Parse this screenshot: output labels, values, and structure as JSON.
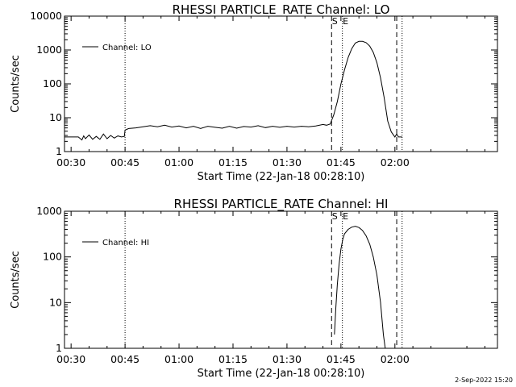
{
  "footer": {
    "timestamp": "2-Sep-2022 15:20"
  },
  "chart_data": [
    {
      "type": "line",
      "title": "RHESSI PARTICLE_RATE Channel: LO",
      "xlabel": "Start Time (22-Jan-18 00:28:10)",
      "ylabel": "Counts/sec",
      "y_scale": "log",
      "xlim_minutes": [
        28.17,
        148.5
      ],
      "ylim": [
        1,
        10000
      ],
      "x_tick_labels": [
        "00:30",
        "00:45",
        "01:00",
        "01:15",
        "01:30",
        "01:45",
        "02:00"
      ],
      "x_tick_minutes": [
        30,
        45,
        60,
        75,
        90,
        105,
        120
      ],
      "y_ticks": [
        1,
        10,
        100,
        1000,
        10000
      ],
      "y_tick_labels": [
        "1",
        "10",
        "100",
        "1000",
        "10000"
      ],
      "legend": {
        "label": "Channel: LO",
        "placement": "top-left"
      },
      "markers": {
        "S": 102.4,
        "E": 105.4
      },
      "dashed_lines": [
        102.4,
        120.5
      ],
      "dotted_lines": [
        45,
        105.4,
        122
      ],
      "series": [
        {
          "x": [
            28.2,
            30,
            32,
            33,
            33.5,
            34,
            35,
            36,
            37,
            38,
            39,
            40,
            41,
            42,
            43,
            44,
            44.8,
            45,
            46,
            48,
            50,
            52,
            54,
            56,
            58,
            60,
            62,
            64,
            66,
            68,
            70,
            72,
            74,
            76,
            78,
            80,
            82,
            84,
            86,
            88,
            90,
            92,
            94,
            96,
            98,
            100,
            101,
            102,
            103,
            104,
            105,
            106,
            107,
            108,
            109,
            110,
            111,
            112,
            113,
            114,
            115,
            116,
            117,
            118,
            119,
            120,
            120.5,
            121,
            122
          ],
          "y": [
            2.7,
            2.7,
            2.7,
            2.2,
            2.9,
            2.4,
            3.1,
            2.3,
            2.8,
            2.3,
            3.3,
            2.4,
            3.0,
            2.5,
            2.9,
            2.7,
            2.8,
            4.3,
            4.8,
            5.0,
            5.4,
            5.8,
            5.4,
            6.0,
            5.3,
            5.7,
            5.0,
            5.6,
            4.8,
            5.6,
            5.2,
            4.9,
            5.6,
            4.9,
            5.5,
            5.3,
            5.8,
            5.1,
            5.6,
            5.2,
            5.6,
            5.3,
            5.6,
            5.4,
            5.7,
            6.3,
            6.0,
            6.5,
            12,
            30,
            100,
            260,
            600,
            1100,
            1600,
            1800,
            1800,
            1650,
            1300,
            850,
            420,
            150,
            40,
            8,
            3.8,
            2.7,
            3.3,
            2.7,
            2.7
          ]
        }
      ]
    },
    {
      "type": "line",
      "title": "RHESSI PARTICLE_RATE Channel: HI",
      "xlabel": "Start Time (22-Jan-18 00:28:10)",
      "ylabel": "Counts/sec",
      "y_scale": "log",
      "xlim_minutes": [
        28.17,
        148.5
      ],
      "ylim": [
        1,
        1000
      ],
      "x_tick_labels": [
        "00:30",
        "00:45",
        "01:00",
        "01:15",
        "01:30",
        "01:45",
        "02:00"
      ],
      "x_tick_minutes": [
        30,
        45,
        60,
        75,
        90,
        105,
        120
      ],
      "y_ticks": [
        1,
        10,
        100,
        1000
      ],
      "y_tick_labels": [
        "1",
        "10",
        "100",
        "1000"
      ],
      "legend": {
        "label": "Channel: HI",
        "placement": "top-left"
      },
      "markers": {
        "S": 102.4,
        "E": 105.4
      },
      "dashed_lines": [
        102.4,
        120.5
      ],
      "dotted_lines": [
        45,
        105.4,
        122
      ],
      "series": [
        {
          "x": [
            103.2,
            103.6,
            104,
            104.5,
            105,
            105.5,
            106,
            107,
            108,
            109,
            110,
            111,
            112,
            113,
            114,
            115,
            116,
            116.8,
            117.3
          ],
          "y": [
            2,
            8,
            25,
            70,
            150,
            240,
            320,
            400,
            450,
            470,
            440,
            380,
            290,
            190,
            100,
            40,
            10,
            2,
            1
          ]
        }
      ]
    }
  ]
}
